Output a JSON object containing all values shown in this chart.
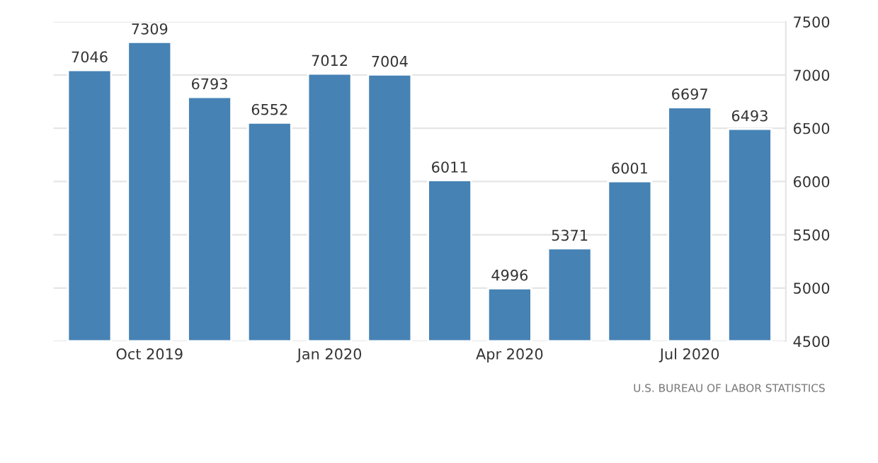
{
  "chart_data": {
    "type": "bar",
    "categories": [
      null,
      "Oct 2019",
      null,
      null,
      "Jan 2020",
      null,
      null,
      "Apr 2020",
      null,
      null,
      "Jul 2020",
      null
    ],
    "values": [
      7046,
      7309,
      6793,
      6552,
      7012,
      7004,
      6011,
      4996,
      5371,
      6001,
      6697,
      6493
    ],
    "color": "#4682b4",
    "ylim": [
      4500,
      7500
    ],
    "yticks": [
      4500,
      5000,
      5500,
      6000,
      6500,
      7000,
      7500
    ],
    "grid": "y",
    "data_labels": true,
    "annotations": [
      "U.S. BUREAU OF LABOR STATISTICS"
    ]
  }
}
